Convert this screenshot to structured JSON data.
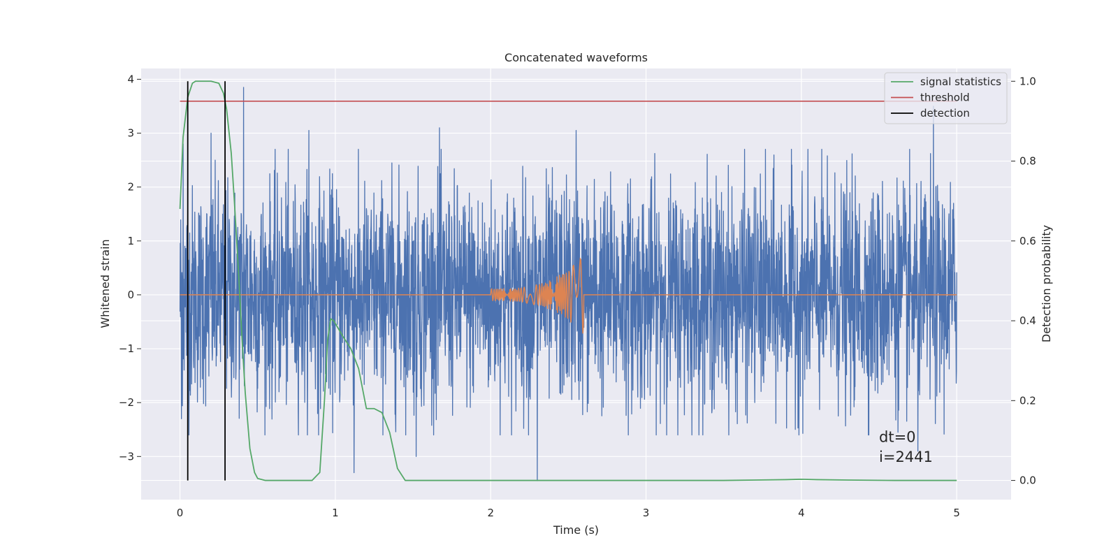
{
  "chart_data": {
    "type": "line",
    "title": "Concatenated waveforms",
    "xlabel": "Time (s)",
    "ylabel": "Whitened strain",
    "ylabel_right": "Detection probability",
    "xlim": [
      -0.25,
      5.35
    ],
    "ylim": [
      -3.8,
      4.2
    ],
    "ylim_right": [
      -0.048,
      1.032
    ],
    "x_ticks": [
      0,
      1,
      2,
      3,
      4,
      5
    ],
    "y_ticks": [
      -3,
      -2,
      -1,
      0,
      1,
      2,
      3,
      4
    ],
    "y_ticks_right": [
      0.0,
      0.2,
      0.4,
      0.6,
      0.8,
      1.0
    ],
    "x_tick_labels": [
      "0",
      "1",
      "2",
      "3",
      "4",
      "5"
    ],
    "y_tick_labels": [
      "−3",
      "−2",
      "−1",
      "0",
      "1",
      "2",
      "3",
      "4"
    ],
    "y_tick_labels_right": [
      "0.0",
      "0.2",
      "0.4",
      "0.6",
      "0.8",
      "1.0"
    ],
    "grid": true,
    "legend_position": "top-right",
    "series": [
      {
        "name": "strain",
        "axis": "left",
        "color": "#4c72b0",
        "kind": "noise",
        "x_range": [
          0,
          5
        ],
        "envelope": 1.0,
        "spikes": [
          {
            "x": 0.02,
            "y": 2.8
          },
          {
            "x": 0.05,
            "y": 1.7
          },
          {
            "x": 0.2,
            "y": 3.0
          },
          {
            "x": 0.41,
            "y": 3.85
          },
          {
            "x": 0.83,
            "y": 3.05
          },
          {
            "x": 1.67,
            "y": 3.1
          },
          {
            "x": 2.55,
            "y": 3.05
          },
          {
            "x": 4.85,
            "y": 3.5
          },
          {
            "x": 2.3,
            "y": -3.45
          },
          {
            "x": 1.12,
            "y": -3.3
          },
          {
            "x": 1.52,
            "y": -3.0
          },
          {
            "x": 0.01,
            "y": -2.3
          },
          {
            "x": 4.75,
            "y": -2.9
          }
        ]
      },
      {
        "name": "injected waveform",
        "axis": "left",
        "color": "#dd8452",
        "kind": "chirp",
        "x_range": [
          0,
          5
        ],
        "chirp_start": 2.0,
        "chirp_end": 2.6,
        "amplitude_start": 0.12,
        "amplitude_end": 0.75
      },
      {
        "name": "signal statistics",
        "axis": "right",
        "color": "#55a868",
        "kind": "line",
        "x": [
          0.0,
          0.02,
          0.05,
          0.08,
          0.1,
          0.15,
          0.2,
          0.25,
          0.28,
          0.3,
          0.33,
          0.35,
          0.38,
          0.4,
          0.42,
          0.45,
          0.48,
          0.5,
          0.55,
          0.7,
          0.85,
          0.9,
          0.93,
          0.95,
          0.97,
          0.99,
          1.02,
          1.05,
          1.1,
          1.15,
          1.2,
          1.25,
          1.3,
          1.35,
          1.4,
          1.45,
          1.5,
          2.0,
          2.5,
          3.0,
          3.5,
          3.7,
          3.9,
          4.0,
          4.1,
          4.3,
          4.6,
          5.0
        ],
        "y": [
          0.68,
          0.86,
          0.96,
          0.995,
          1.0,
          1.0,
          1.0,
          0.995,
          0.97,
          0.93,
          0.82,
          0.7,
          0.5,
          0.35,
          0.22,
          0.08,
          0.02,
          0.005,
          0.0,
          0.0,
          0.0,
          0.02,
          0.2,
          0.35,
          0.405,
          0.4,
          0.38,
          0.36,
          0.33,
          0.28,
          0.18,
          0.18,
          0.17,
          0.12,
          0.03,
          0.0,
          0.0,
          0.0,
          0.0,
          0.0,
          0.0,
          0.001,
          0.002,
          0.003,
          0.002,
          0.001,
          0.0,
          0.0
        ]
      },
      {
        "name": "threshold",
        "axis": "right",
        "color": "#c44e52",
        "kind": "hline",
        "x_range": [
          0,
          5
        ],
        "y": 0.95
      },
      {
        "name": "detection",
        "axis": "right",
        "color": "#000000",
        "kind": "vlines",
        "x": [
          0.05,
          0.29
        ],
        "y_range": [
          0.0,
          1.0
        ]
      }
    ],
    "legend": [
      {
        "label": "signal statistics",
        "color": "#55a868"
      },
      {
        "label": "threshold",
        "color": "#c44e52"
      },
      {
        "label": "detection",
        "color": "#000000"
      }
    ],
    "annotations": [
      {
        "text": "dt=0",
        "x": 4.5,
        "y": -2.73
      },
      {
        "text": "i=2441",
        "x": 4.5,
        "y": -3.1
      }
    ],
    "colors": {
      "plot_background": "#eaeaf2",
      "grid": "#ffffff",
      "text": "#262626",
      "tick": "#262626"
    }
  }
}
